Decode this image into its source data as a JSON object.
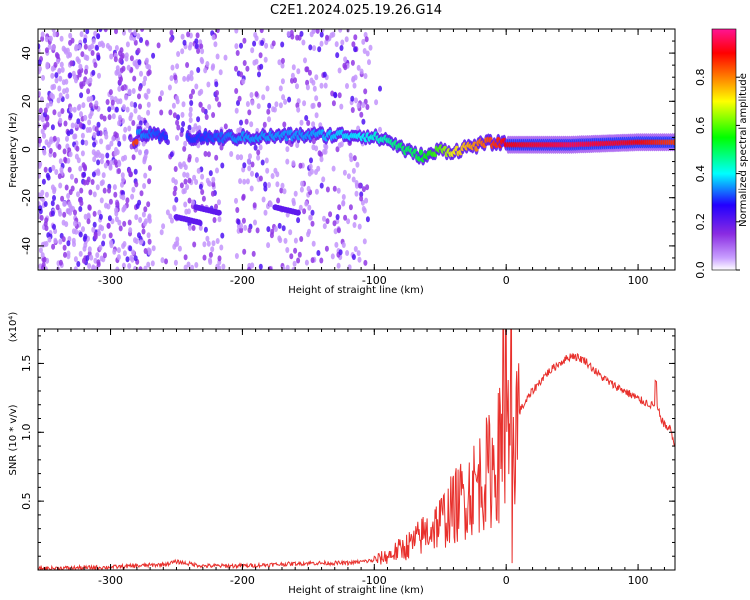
{
  "title": "C2E1.2024.025.19.26.G14",
  "chart_data": [
    {
      "type": "heatmap",
      "xlabel": "Height of straight line (km)",
      "ylabel": "Frequency (Hz)",
      "xlim": [
        -355,
        128
      ],
      "ylim": [
        -50,
        50
      ],
      "xticks": [
        -300,
        -200,
        -100,
        0,
        100
      ],
      "yticks": [
        -40,
        -20,
        0,
        20,
        40
      ],
      "colorbar": {
        "label": "Normalized spectral amplitude",
        "range": [
          0.0,
          1.0
        ],
        "ticks": [
          "0.0",
          "0.2",
          "0.4",
          "0.6",
          "0.8"
        ],
        "colors": [
          "#ffffff",
          "#c9a0ff",
          "#8a2be2",
          "#2200ff",
          "#00ffff",
          "#00ff00",
          "#ffff00",
          "#ff7f00",
          "#ff0000",
          "#ff1493"
        ]
      },
      "ridge": {
        "description_points_x": [
          -280,
          -260,
          -230,
          -200,
          -150,
          -110,
          -90,
          -80,
          -70,
          -60,
          -50,
          -40,
          -30,
          -20,
          -10,
          0,
          50,
          100,
          128
        ],
        "frequency_hz": [
          7,
          5,
          5,
          5,
          6,
          6,
          4,
          1,
          -2,
          -3,
          0,
          -1,
          1,
          2,
          3,
          2,
          2,
          3,
          3
        ],
        "amplitude": [
          0.35,
          0.3,
          0.3,
          0.35,
          0.35,
          0.4,
          0.45,
          0.5,
          0.5,
          0.55,
          0.6,
          0.7,
          0.75,
          0.8,
          0.85,
          0.9,
          0.95,
          0.9,
          0.85
        ]
      }
    },
    {
      "type": "line",
      "xlabel": "Height of straight line (km)",
      "ylabel": "SNR (10 * v/v)",
      "scale_note": "(x10⁴)",
      "xlim": [
        -355,
        128
      ],
      "ylim": [
        0,
        1.75
      ],
      "xticks": [
        -300,
        -200,
        -100,
        0,
        100
      ],
      "yticks": [
        0.5,
        1.0,
        1.5
      ],
      "color": "#e8302c",
      "series": [
        {
          "x": [
            -355,
            -300,
            -260,
            -250,
            -230,
            -200,
            -150,
            -120,
            -100,
            -90,
            -80,
            -70,
            -60,
            -50,
            -40,
            -30,
            -20,
            -10,
            -5,
            0,
            5,
            10,
            20,
            30,
            40,
            50,
            60,
            70,
            80,
            90,
            100,
            110,
            115,
            120,
            125,
            128
          ],
          "y": [
            0.01,
            0.02,
            0.04,
            0.06,
            0.03,
            0.03,
            0.05,
            0.05,
            0.07,
            0.1,
            0.15,
            0.2,
            0.28,
            0.35,
            0.45,
            0.55,
            0.65,
            0.75,
            0.85,
            0.9,
            1.0,
            1.15,
            1.3,
            1.42,
            1.5,
            1.56,
            1.52,
            1.42,
            1.35,
            1.3,
            1.24,
            1.2,
            1.16,
            1.05,
            1.02,
            0.88
          ]
        }
      ]
    }
  ]
}
